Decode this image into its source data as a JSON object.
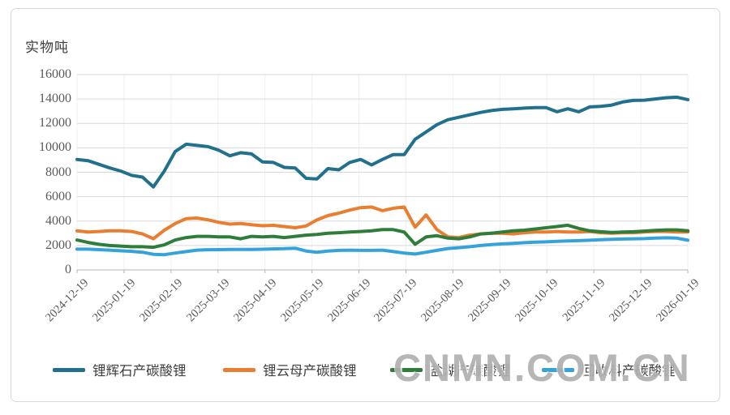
{
  "watermark": {
    "text": "CNMN.COM.CN"
  },
  "chart_data": {
    "type": "line",
    "unit_label": "实物吨",
    "ylim": [
      0,
      16000
    ],
    "y_ticks": [
      0,
      2000,
      4000,
      6000,
      8000,
      10000,
      12000,
      14000,
      16000
    ],
    "x_tick_labels": [
      "2024-12-19",
      "2025-01-19",
      "2025-02-19",
      "2025-03-19",
      "2025-04-19",
      "2025-05-19",
      "2025-06-19",
      "2025-07-19",
      "2025-08-19",
      "2025-09-19",
      "2025-10-19",
      "2025-11-19",
      "2025-12-19",
      "2026-01-19"
    ],
    "grid": "horizontal major gridlines + faint vertical month gridlines",
    "legend_position": "bottom",
    "series": [
      {
        "name": "锂辉石产碳酸锂",
        "color": "#21708e",
        "values": [
          9050,
          8950,
          8650,
          8350,
          8100,
          7750,
          7600,
          6800,
          8100,
          9700,
          10300,
          10200,
          10100,
          9800,
          9350,
          9600,
          9500,
          8850,
          8800,
          8400,
          8350,
          7500,
          7450,
          8300,
          8200,
          8800,
          9050,
          8600,
          9050,
          9450,
          9450,
          10700,
          11300,
          11900,
          12300,
          12500,
          12700,
          12900,
          13050,
          13150,
          13200,
          13250,
          13300,
          13300,
          12950,
          13200,
          12950,
          13350,
          13400,
          13500,
          13750,
          13880,
          13900,
          14000,
          14100,
          14150,
          13950
        ]
      },
      {
        "name": "锂云母产碳酸锂",
        "color": "#e97e30",
        "values": [
          3200,
          3100,
          3150,
          3200,
          3200,
          3150,
          2950,
          2550,
          3250,
          3800,
          4200,
          4250,
          4100,
          3900,
          3750,
          3800,
          3700,
          3620,
          3650,
          3550,
          3450,
          3600,
          4100,
          4450,
          4650,
          4900,
          5100,
          5150,
          4850,
          5050,
          5150,
          3500,
          4500,
          3300,
          2700,
          2650,
          2850,
          2950,
          3000,
          3000,
          2950,
          3050,
          3100,
          3100,
          3150,
          3100,
          3100,
          3150,
          3050,
          3000,
          3050,
          3050,
          3100,
          3150,
          3150,
          3100,
          3100
        ]
      },
      {
        "name": "盐湖产碳酸锂",
        "color": "#2f7d3a",
        "values": [
          2450,
          2250,
          2100,
          2000,
          1950,
          1900,
          1900,
          1850,
          2050,
          2450,
          2650,
          2750,
          2750,
          2700,
          2700,
          2550,
          2750,
          2700,
          2750,
          2650,
          2750,
          2850,
          2900,
          3000,
          3050,
          3100,
          3150,
          3200,
          3300,
          3300,
          3100,
          2100,
          2700,
          2800,
          2600,
          2550,
          2700,
          2950,
          3000,
          3100,
          3200,
          3250,
          3350,
          3450,
          3550,
          3660,
          3400,
          3200,
          3130,
          3070,
          3100,
          3130,
          3180,
          3230,
          3280,
          3280,
          3200
        ]
      },
      {
        "name": "回收料产碳酸锂",
        "color": "#35a3da",
        "values": [
          1700,
          1700,
          1660,
          1620,
          1570,
          1520,
          1450,
          1280,
          1250,
          1380,
          1500,
          1620,
          1650,
          1660,
          1670,
          1670,
          1670,
          1690,
          1720,
          1740,
          1780,
          1550,
          1450,
          1550,
          1600,
          1620,
          1600,
          1600,
          1620,
          1500,
          1380,
          1300,
          1450,
          1600,
          1750,
          1820,
          1900,
          2000,
          2080,
          2130,
          2180,
          2230,
          2270,
          2300,
          2340,
          2370,
          2400,
          2430,
          2470,
          2510,
          2530,
          2550,
          2560,
          2600,
          2630,
          2600,
          2430
        ]
      }
    ]
  }
}
